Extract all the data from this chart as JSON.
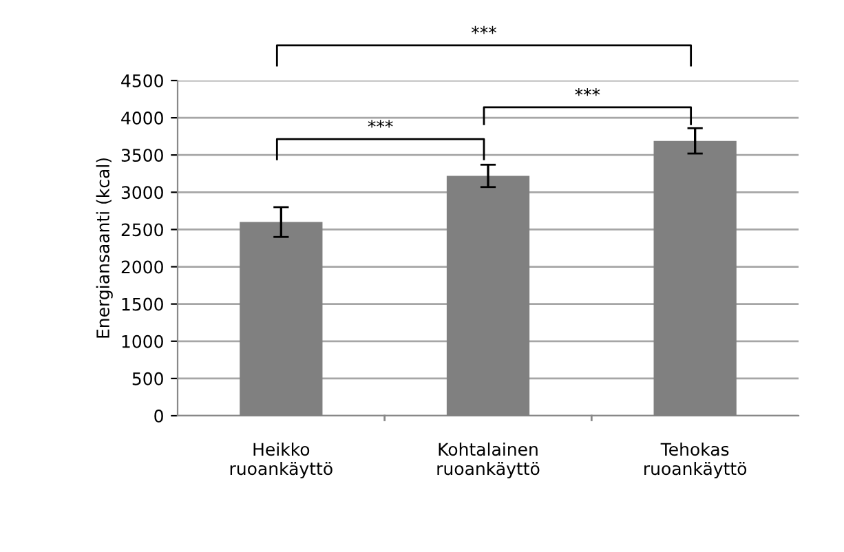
{
  "chart_data": {
    "type": "bar",
    "ylabel": "Energiansaanti (kcal)",
    "categories": [
      "Heikko\nruoankäyttö",
      "Kohtalainen\nruoankäyttö",
      "Tehokas\nruoankäyttö"
    ],
    "values": [
      2600,
      3220,
      3690
    ],
    "errors": [
      200,
      150,
      170
    ],
    "color": "#808080",
    "ylim": [
      0,
      4500
    ],
    "yticks": [
      0,
      500,
      1000,
      1500,
      2000,
      2500,
      3000,
      3500,
      4000,
      4500
    ],
    "grid": "y",
    "annotations": [
      "***",
      "***",
      "***"
    ]
  }
}
